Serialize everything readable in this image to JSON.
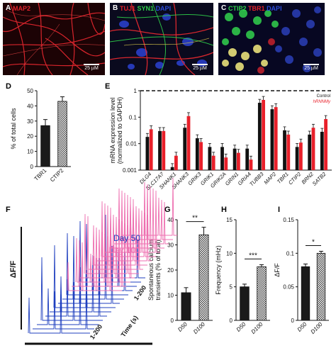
{
  "panels": {
    "A": {
      "letter": "A",
      "label": "MAP2",
      "scale": "25 µM",
      "label_color": "#e0202a"
    },
    "B": {
      "letter": "B",
      "labels": [
        "TUJ1",
        "SYN1",
        "DAPI"
      ],
      "label_colors": [
        "#e0202a",
        "#2fd04a",
        "#2a4bd8"
      ],
      "scale": "25 µM"
    },
    "C": {
      "letter": "C",
      "labels": [
        "CTIP2",
        "TBR1",
        "DAPI"
      ],
      "label_colors": [
        "#2fd04a",
        "#e0202a",
        "#2a4bd8"
      ],
      "scale": "25 µM"
    },
    "D": {
      "letter": "D"
    },
    "E": {
      "letter": "E"
    },
    "F": {
      "letter": "F",
      "day50": "Day 50",
      "day100": "Day 100",
      "ylabel": "ΔF/F",
      "axis_cells": "1-200",
      "axis_cells2": "1-200",
      "axis_time": "Time (s)"
    },
    "G": {
      "letter": "G"
    },
    "H": {
      "letter": "H"
    },
    "I": {
      "letter": "I"
    }
  },
  "colors": {
    "control": "#111111",
    "mutant": "#e8202a",
    "day50": "#1f3fbf",
    "day100": "#ee6fb0",
    "dark_bar": "#1a1a1a"
  },
  "chart_data": [
    {
      "panel": "D",
      "type": "bar",
      "categories": [
        "TBR1",
        "CTIP2"
      ],
      "values": [
        27,
        43
      ],
      "errors": [
        4,
        3
      ],
      "ylabel": "% of total cells",
      "ylim": [
        0,
        50
      ],
      "yticks": [
        0,
        10,
        20,
        30,
        40,
        50
      ]
    },
    {
      "panel": "E",
      "type": "bar",
      "log_scale": true,
      "categories": [
        "DLG4",
        "SLC17A7",
        "SHANK1",
        "SHANK3",
        "GRIK3",
        "GRIK1",
        "GRIK2A",
        "GRIN1",
        "GRIA4",
        "TUBB3",
        "MAP2",
        "TBR1",
        "CTIP2",
        "BRN2",
        "SATB2"
      ],
      "series": [
        {
          "name": "Control",
          "values": [
            0.018,
            0.03,
            0.0013,
            0.04,
            0.016,
            0.0075,
            0.0075,
            0.0065,
            0.0065,
            0.35,
            0.2,
            0.032,
            0.0075,
            0.022,
            0.028
          ]
        },
        {
          "name": "hRNNMy",
          "values": [
            0.035,
            0.03,
            0.0035,
            0.11,
            0.0115,
            0.0035,
            0.003,
            0.0045,
            0.0025,
            0.45,
            0.24,
            0.022,
            0.011,
            0.04,
            0.085
          ]
        }
      ],
      "control_line": 1,
      "ylabel": "mRNA expression level (normalized to GAPDH)",
      "ylim": [
        0.001,
        1
      ],
      "yticks": [
        0.001,
        0.01,
        0.1,
        1
      ],
      "legend": [
        "Control",
        "hRNNMy"
      ],
      "legend_position": "top-right"
    },
    {
      "panel": "G",
      "type": "bar",
      "categories": [
        "D50",
        "D100"
      ],
      "values": [
        11,
        34
      ],
      "errors": [
        2,
        3
      ],
      "ylabel": "Spontaneous calcium transients (% of total)",
      "ylim": [
        0,
        40
      ],
      "yticks": [
        0,
        10,
        20,
        30,
        40
      ],
      "significance": "**"
    },
    {
      "panel": "H",
      "type": "bar",
      "categories": [
        "D50",
        "D100"
      ],
      "values": [
        5,
        8
      ],
      "errors": [
        0.4,
        0.3
      ],
      "ylabel": "Frequency (mHz)",
      "ylim": [
        0,
        15
      ],
      "yticks": [
        0,
        5,
        10,
        15
      ],
      "significance": "***"
    },
    {
      "panel": "I",
      "type": "bar",
      "categories": [
        "D50",
        "D100"
      ],
      "values": [
        0.08,
        0.1
      ],
      "errors": [
        0.004,
        0.003
      ],
      "ylabel": "ΔF/F",
      "ylim": [
        0,
        0.15
      ],
      "yticks": [
        0,
        0.05,
        0.1,
        0.15
      ],
      "significance": "*"
    }
  ]
}
